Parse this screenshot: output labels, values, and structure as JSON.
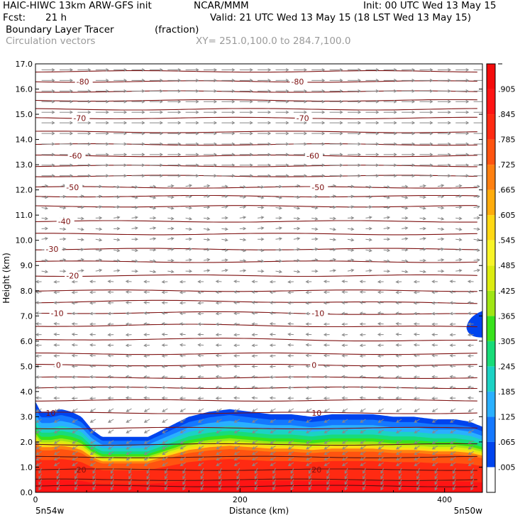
{
  "header": {
    "model": "HAIC-HIWC 13km ARW-GFS init",
    "org": "NCAR/MMM",
    "init": "Init: 00 UTC Wed 13 May 15",
    "fcst_label": "Fcst:",
    "fcst_value": "21 h",
    "valid": "Valid: 21 UTC Wed 13 May 15 (18 LST Wed 13 May 15)",
    "field": "Boundary Layer Tracer",
    "field_units": "(fraction)",
    "vectors": "Circulation vectors",
    "xy_range": "XY= 251.0,100.0 to 284.7,100.0"
  },
  "chart_data": {
    "type": "heatmap",
    "title": "Boundary Layer Tracer",
    "xlabel": "Distance (km)",
    "ylabel": "Height (km)",
    "xlim": [
      0,
      437
    ],
    "ylim": [
      0,
      17
    ],
    "x_ticks": [
      "0",
      "200",
      "400"
    ],
    "y_ticks": [
      "0.0",
      "1.0",
      "2.0",
      "3.0",
      "4.0",
      "5.0",
      "6.0",
      "7.0",
      "8.0",
      "9.0",
      "10.0",
      "11.0",
      "12.0",
      "13.0",
      "14.0",
      "15.0",
      "16.0",
      "17.0"
    ],
    "left_endpoint": "5n54w",
    "right_endpoint": "5n50w",
    "colorbar_labels": [
      ".005",
      ".065",
      ".125",
      ".185",
      ".245",
      ".305",
      ".365",
      ".425",
      ".485",
      ".545",
      ".605",
      ".665",
      ".725",
      ".785",
      ".845",
      ".905"
    ],
    "colorbar_colors": [
      "#ffffff",
      "#0044ee",
      "#1478ff",
      "#2ab0ff",
      "#1cd2c4",
      "#18dc78",
      "#38e21c",
      "#a0e614",
      "#dcec10",
      "#f8f428",
      "#ffd814",
      "#ffac0c",
      "#ff8010",
      "#ff5410",
      "#ff2a12",
      "#ff1414",
      "#f40c0c"
    ],
    "contour_color": "#7d1010",
    "vector_color": "#888888",
    "tracer_profile": {
      "x": [
        0,
        5,
        15,
        25,
        35,
        45,
        55,
        65,
        75,
        90,
        110,
        130,
        150,
        170,
        190,
        210,
        230,
        250,
        270,
        290,
        310,
        330,
        350,
        370,
        390,
        410,
        425,
        437
      ],
      "top_height": [
        3.6,
        3.2,
        3.2,
        3.3,
        3.2,
        3.0,
        2.5,
        2.2,
        2.2,
        2.2,
        2.2,
        2.6,
        3.0,
        3.2,
        3.3,
        3.2,
        3.1,
        3.1,
        3.0,
        3.1,
        3.1,
        3.1,
        3.0,
        3.0,
        2.9,
        2.9,
        2.8,
        2.6
      ]
    },
    "upper_blob": {
      "x": [
        420,
        437
      ],
      "height": [
        6.2,
        7.2
      ]
    },
    "temperature_contours": [
      {
        "value": 20,
        "height": 0.9,
        "label": "20"
      },
      {
        "value": 10,
        "height": 3.15,
        "label": "10"
      },
      {
        "value": 0,
        "height": 5.05,
        "label": "0"
      },
      {
        "value": -10,
        "height": 7.1,
        "label": "-10"
      },
      {
        "value": -20,
        "height": 8.6,
        "label": "-20"
      },
      {
        "value": -30,
        "height": 9.65,
        "label": "-30"
      },
      {
        "value": -40,
        "height": 10.75,
        "label": "-40"
      },
      {
        "value": -50,
        "height": 12.1,
        "label": "-50"
      },
      {
        "value": -60,
        "height": 13.35,
        "label": "-60"
      },
      {
        "value": -70,
        "height": 14.85,
        "label": "-70"
      },
      {
        "value": -80,
        "height": 16.3,
        "label": "-80"
      }
    ],
    "extra_isotherm_heights": [
      0.25,
      0.5,
      1.4,
      1.9,
      2.55,
      3.65,
      4.15,
      4.55,
      5.5,
      6.05,
      6.6,
      7.55,
      8.0,
      9.15,
      10.25,
      11.35,
      11.75,
      12.55,
      12.95,
      13.8,
      14.3,
      15.2,
      15.55,
      15.9,
      16.7
    ]
  }
}
